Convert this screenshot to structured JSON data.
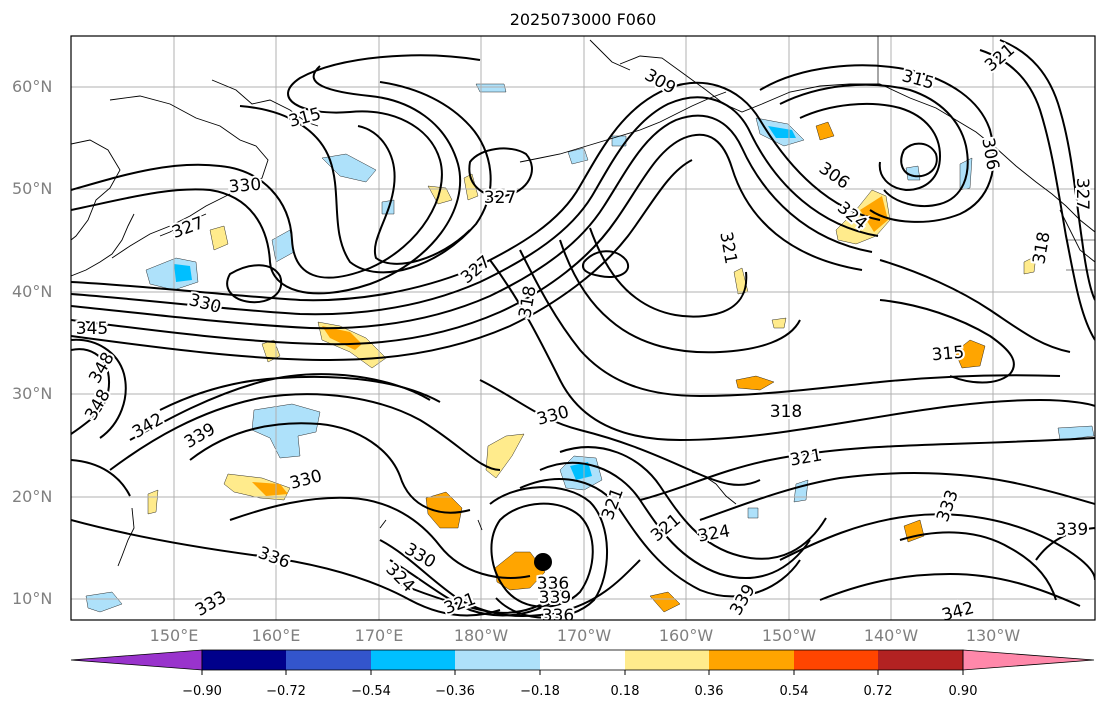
{
  "title": "2025073000 F060",
  "map": {
    "lat_labels": [
      "60°N",
      "50°N",
      "40°N",
      "30°N",
      "20°N",
      "10°N"
    ],
    "lon_labels": [
      "150°E",
      "160°E",
      "170°E",
      "180°W",
      "170°W",
      "160°W",
      "150°W",
      "140°W",
      "130°W"
    ],
    "contour_labels": [
      "309",
      "315",
      "321",
      "315",
      "330",
      "327",
      "327",
      "306",
      "327",
      "321",
      "306",
      "324",
      "318",
      "327",
      "318",
      "330",
      "345",
      "348",
      "348",
      "315",
      "342",
      "330",
      "318",
      "339",
      "321",
      "330",
      "321",
      "333",
      "336",
      "321",
      "324",
      "339",
      "330",
      "324",
      "339",
      "336",
      "333",
      "321",
      "339",
      "342",
      "336"
    ],
    "marker": "storm-center"
  },
  "colorbar": {
    "ticks": [
      "−0.90",
      "−0.72",
      "−0.54",
      "−0.36",
      "−0.18",
      "0.18",
      "0.36",
      "0.54",
      "0.72",
      "0.90"
    ],
    "colors": {
      "under": "#9933cc",
      "bins": [
        "#00008b",
        "#3355cc",
        "#00bfff",
        "#aee1fa",
        "#ffffff",
        "#ffeb8c",
        "#ffa500",
        "#ff4500",
        "#b22222"
      ],
      "over": "#ff88aa"
    }
  }
}
